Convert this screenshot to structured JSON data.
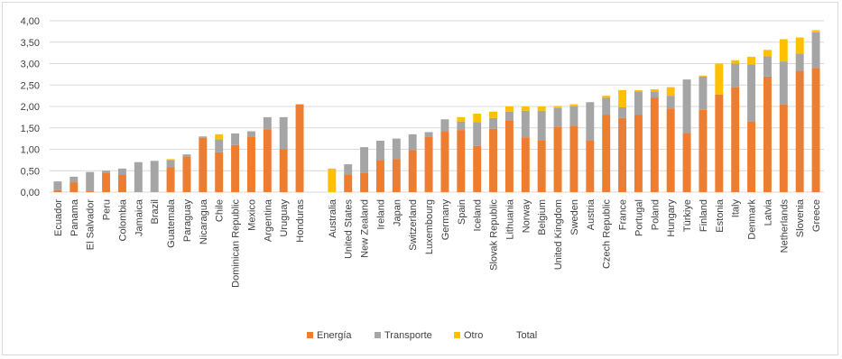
{
  "chart_data": {
    "type": "bar",
    "stacked": true,
    "title": "",
    "xlabel": "",
    "ylabel": "",
    "ylim": [
      0,
      4
    ],
    "yticks": [
      "0,00",
      "0,50",
      "1,00",
      "1,50",
      "2,00",
      "2,50",
      "3,00",
      "3,50",
      "4,00"
    ],
    "grid": true,
    "legend_position": "bottom",
    "colors": {
      "energia": "#ED7D31",
      "transporte": "#A5A5A5",
      "otro": "#FFC000",
      "total": "#4472C4"
    },
    "series_names": [
      "Energía",
      "Transporte",
      "Otro",
      "Total"
    ],
    "groups": [
      {
        "categories": [
          "Ecuador",
          "Panama",
          "El Salvador",
          "Peru",
          "Colombia",
          "Jamaica",
          "Brazil",
          "Guatemala",
          "Paraguay",
          "Nicaragua",
          "Chile",
          "Dominican Republic",
          "Mexico",
          "Argentina",
          "Uruguay",
          "Honduras"
        ],
        "energia": [
          0.05,
          0.23,
          0.02,
          0.45,
          0.4,
          0.0,
          0.0,
          0.58,
          0.83,
          1.27,
          0.93,
          1.1,
          1.3,
          1.47,
          1.0,
          2.05
        ],
        "transporte": [
          0.2,
          0.13,
          0.45,
          0.05,
          0.15,
          0.7,
          0.73,
          0.17,
          0.05,
          0.03,
          0.3,
          0.27,
          0.12,
          0.28,
          0.75,
          0.0
        ],
        "otro": [
          0.0,
          0.0,
          0.0,
          0.0,
          0.0,
          0.0,
          0.0,
          0.02,
          0.0,
          0.0,
          0.12,
          0.0,
          0.0,
          0.0,
          0.0,
          0.0
        ]
      },
      {
        "categories": [
          "Australia",
          "United States",
          "New Zealand",
          "Ireland",
          "Japan",
          "Switzerland",
          "Luxembourg",
          "Germany",
          "Spain",
          "Iceland",
          "Slovak Republic",
          "Lithuania",
          "Norway",
          "Belgium",
          "United Kingdom",
          "Sweden",
          "Austria",
          "Czech Republic",
          "France",
          "Portugal",
          "Poland",
          "Hungary",
          "Türkiye",
          "Finland",
          "Estonia",
          "Italy",
          "Denmark",
          "Latvia",
          "Netherlands",
          "Slovenia",
          "Greece"
        ],
        "energia": [
          0.0,
          0.4,
          0.45,
          0.75,
          0.77,
          0.98,
          1.3,
          1.42,
          1.45,
          1.08,
          1.48,
          1.68,
          1.28,
          1.2,
          1.53,
          1.55,
          1.2,
          1.8,
          1.73,
          1.8,
          2.2,
          1.95,
          1.38,
          1.92,
          2.28,
          2.45,
          1.65,
          2.7,
          2.05,
          2.83,
          2.9
        ],
        "transporte": [
          0.0,
          0.25,
          0.6,
          0.45,
          0.48,
          0.37,
          0.1,
          0.28,
          0.2,
          0.55,
          0.25,
          0.2,
          0.62,
          0.7,
          0.43,
          0.45,
          0.9,
          0.4,
          0.25,
          0.55,
          0.15,
          0.3,
          1.25,
          0.78,
          0.0,
          0.55,
          1.33,
          0.47,
          1.0,
          0.4,
          0.83
        ],
        "otro": [
          0.55,
          0.0,
          0.0,
          0.0,
          0.0,
          0.0,
          0.0,
          0.0,
          0.1,
          0.2,
          0.15,
          0.12,
          0.1,
          0.1,
          0.05,
          0.05,
          0.0,
          0.05,
          0.4,
          0.03,
          0.05,
          0.2,
          0.0,
          0.02,
          0.72,
          0.08,
          0.18,
          0.15,
          0.52,
          0.38,
          0.05
        ]
      }
    ]
  }
}
